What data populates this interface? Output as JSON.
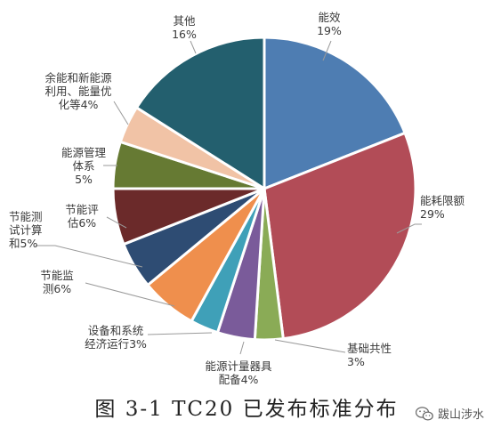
{
  "chart_data": {
    "type": "pie",
    "slices": [
      {
        "label": "能效",
        "percent_label": "19%",
        "value": 19,
        "color": "#4e7db2"
      },
      {
        "label": "能耗限额",
        "percent_label": "29%",
        "value": 29,
        "color": "#b24c57"
      },
      {
        "label": "基础共性",
        "percent_label": "3%",
        "value": 3,
        "color": "#8aab56"
      },
      {
        "label": "能源计量器具配备",
        "percent_label": "4%",
        "value": 4,
        "color": "#7a5b9a"
      },
      {
        "label": "设备和系统经济运行",
        "percent_label": "3%",
        "value": 3,
        "color": "#3fa0b8"
      },
      {
        "label": "节能监测",
        "percent_label": "6%",
        "value": 6,
        "color": "#ef8f4d"
      },
      {
        "label": "节能测试计算和",
        "percent_label": "5%",
        "value": 5,
        "color": "#2e4c73"
      },
      {
        "label": "节能评估",
        "percent_label": "6%",
        "value": 6,
        "color": "#6b2a2a"
      },
      {
        "label": "能源管理体系",
        "percent_label": "5%",
        "value": 5,
        "color": "#667a33"
      },
      {
        "label": "余能和新能源利用、能量优化等",
        "percent_label": "4%",
        "value": 4,
        "color": "#f1c3a6"
      },
      {
        "label": "其他",
        "percent_label": "16%",
        "value": 16,
        "color": "#235f6e"
      }
    ]
  },
  "labels": [
    {
      "lines": [
        "能效",
        "19%"
      ]
    },
    {
      "lines": [
        "能耗限额",
        "29%"
      ]
    },
    {
      "lines": [
        "基础共性",
        "3%"
      ]
    },
    {
      "lines": [
        "能源计量器具",
        "配备4%"
      ]
    },
    {
      "lines": [
        "设备和系统",
        "经济运行3%"
      ]
    },
    {
      "lines": [
        "节能监",
        "测6%"
      ]
    },
    {
      "lines": [
        "节能测",
        "试计算",
        "和5%"
      ]
    },
    {
      "lines": [
        "节能评",
        "估6%"
      ]
    },
    {
      "lines": [
        "能源管理",
        "体系",
        "5%"
      ]
    },
    {
      "lines": [
        "余能和新能源",
        "利用、能量优",
        "化等4%"
      ]
    },
    {
      "lines": [
        "其他",
        "16%"
      ]
    }
  ],
  "caption": "图 3-1 TC20 已发布标准分布",
  "watermark": {
    "text": "跋山涉水",
    "icon": "wechat-icon"
  }
}
